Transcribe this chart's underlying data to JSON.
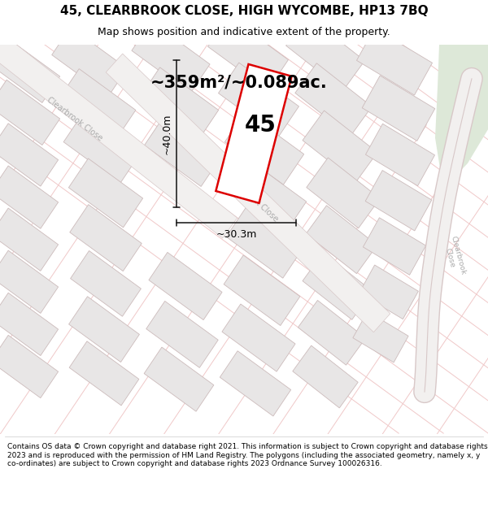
{
  "title_line1": "45, CLEARBROOK CLOSE, HIGH WYCOMBE, HP13 7BQ",
  "title_line2": "Map shows position and indicative extent of the property.",
  "area_label": "~359m²/~0.089ac.",
  "property_number": "45",
  "width_label": "~30.3m",
  "height_label": "~40.0m",
  "footer_text": "Contains OS data © Crown copyright and database right 2021. This information is subject to Crown copyright and database rights 2023 and is reproduced with the permission of HM Land Registry. The polygons (including the associated geometry, namely x, y co-ordinates) are subject to Crown copyright and database rights 2023 Ordnance Survey 100026316.",
  "bg_color": "#ffffff",
  "map_bg_color": "#f7f6f5",
  "plot_line_color": "#dd0000",
  "dim_line_color": "#111111",
  "road_label_color": "#aaaaaa",
  "green_area_color": "#dde8d8",
  "block_fill_color": "#e8e6e6",
  "block_edge_color": "#ccbbbb",
  "road_line_color": "#f0c8c8",
  "road_bg_color": "#eeeeee",
  "title_fontsize": 11,
  "subtitle_fontsize": 9,
  "footer_fontsize": 6.5
}
